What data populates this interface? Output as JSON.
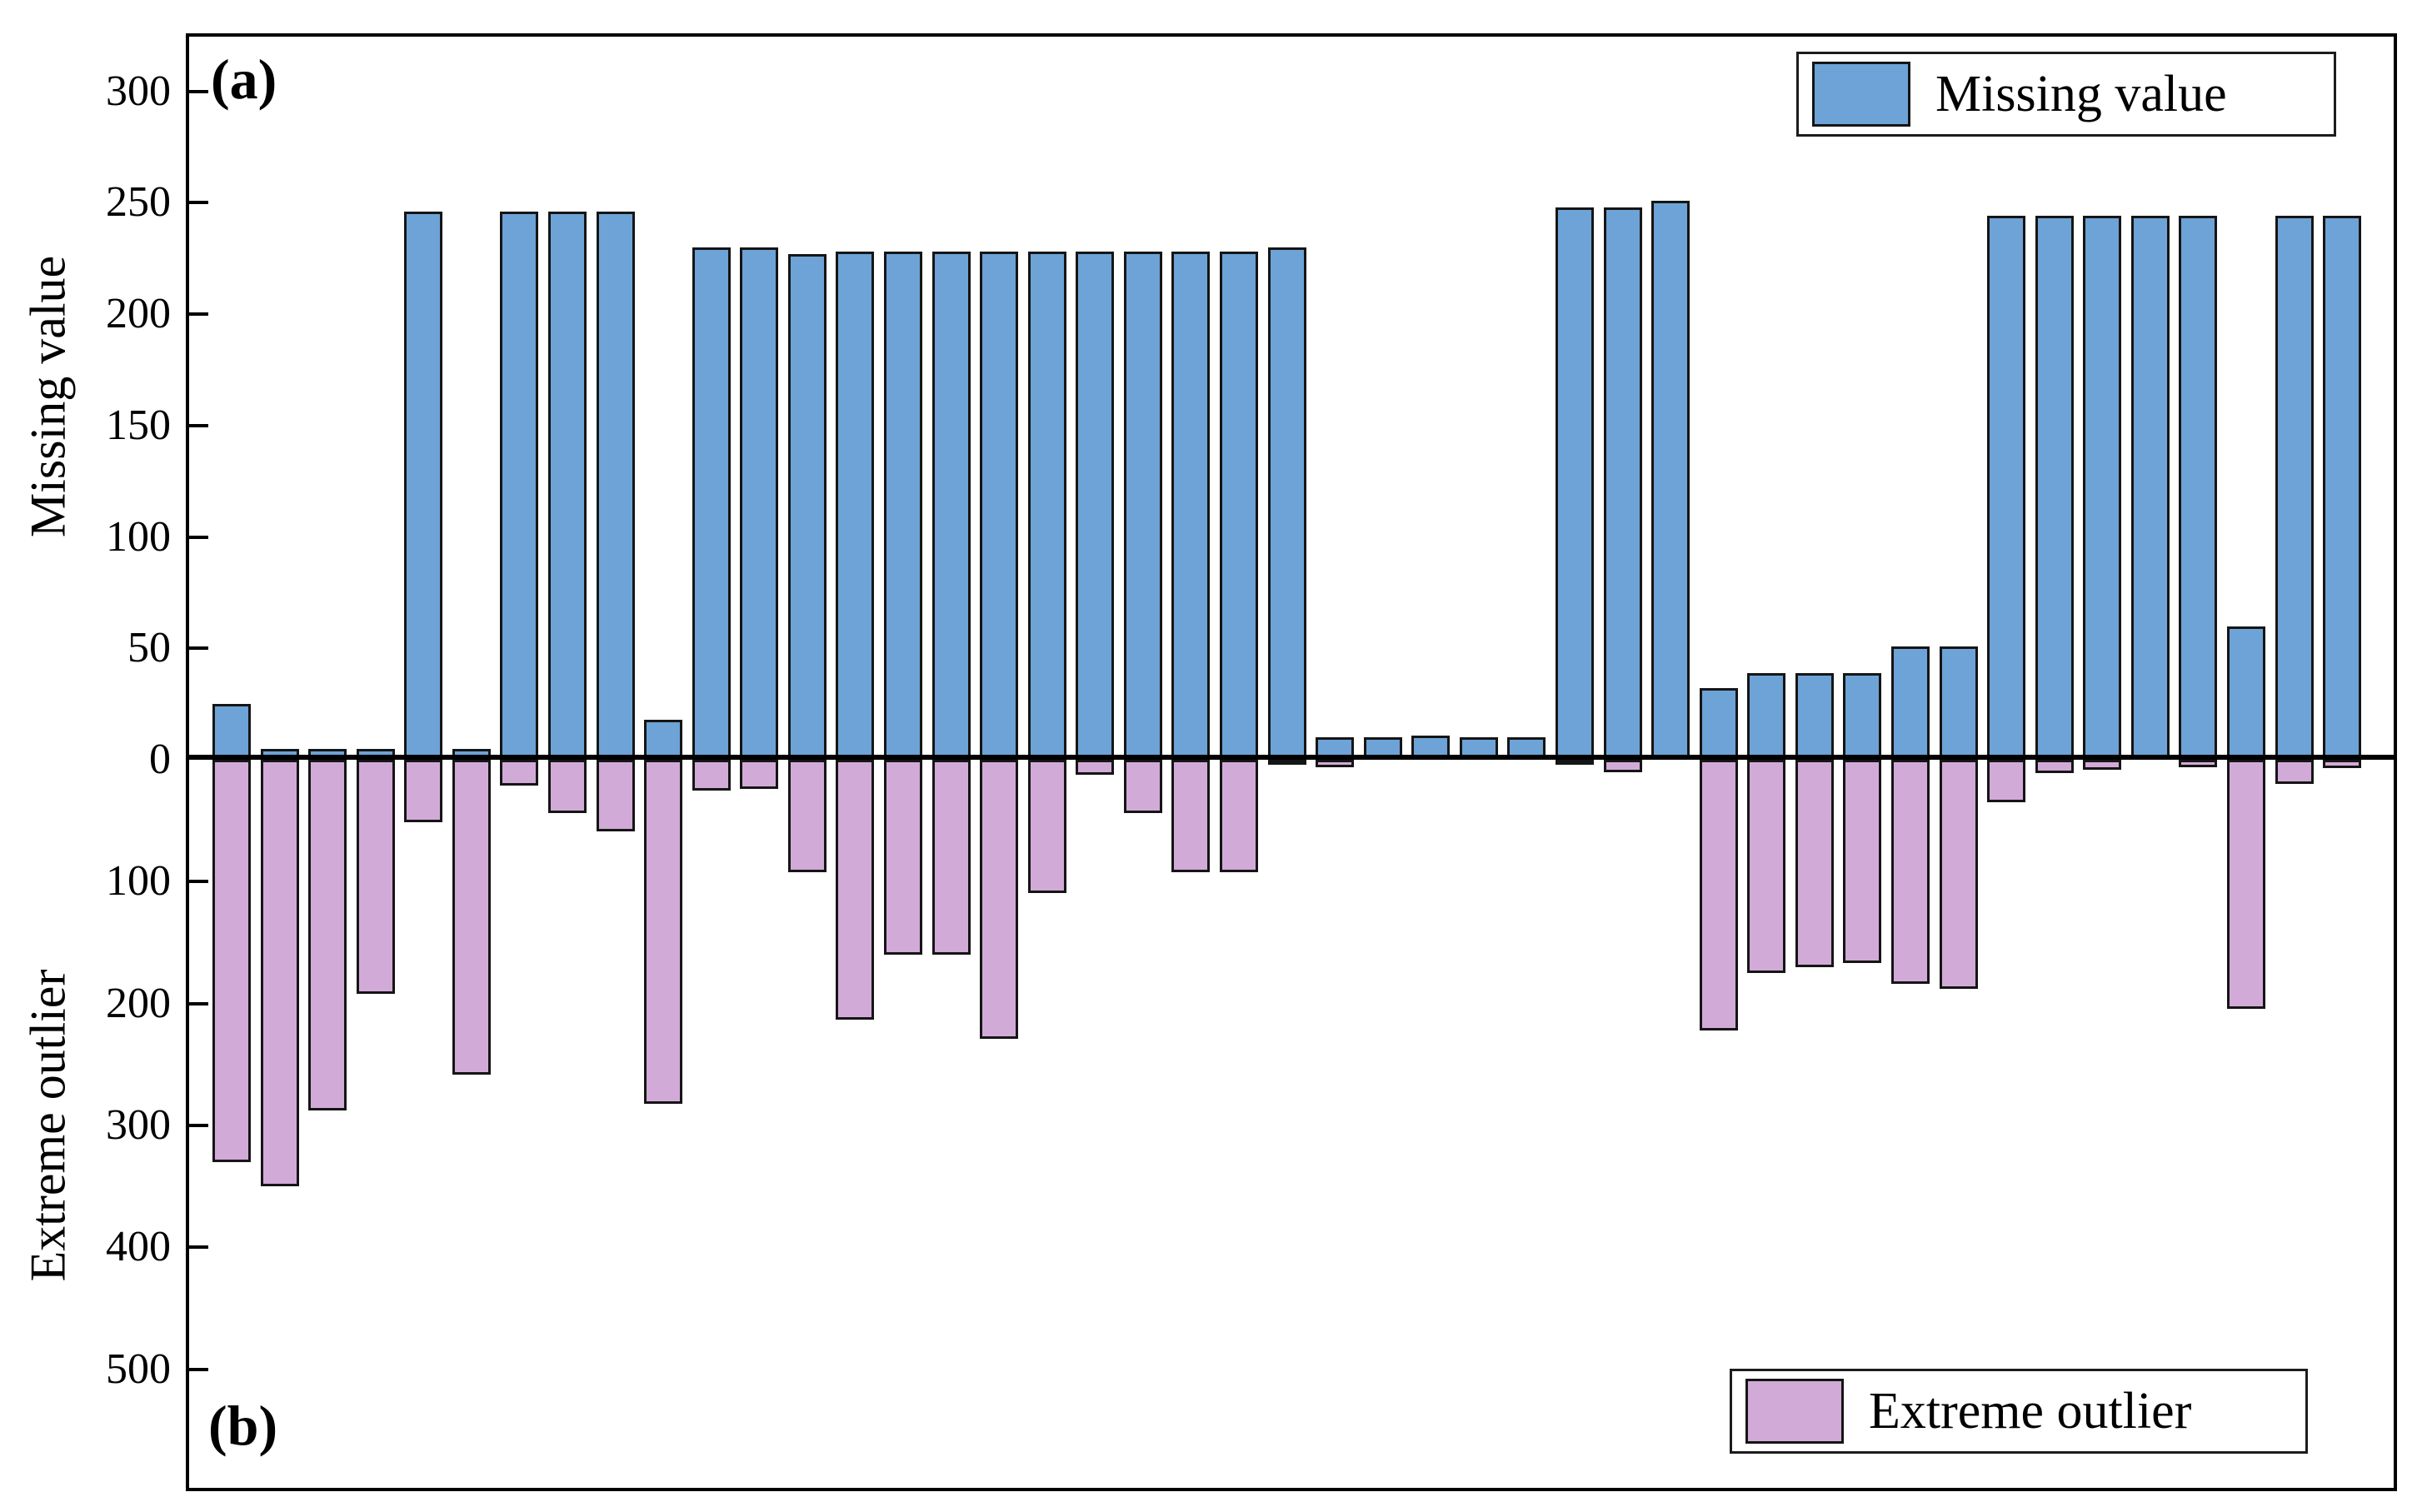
{
  "chart_data": {
    "type": "bar",
    "title": "",
    "n_bars": 45,
    "x_tick_labels": null,
    "grid": false,
    "background_color": "#FFFFFF",
    "axis_color": "#000000",
    "panels": [
      {
        "id": "a",
        "corner_label": "(a)",
        "ylabel": "Missing value",
        "yticks": [
          300,
          250,
          200,
          150,
          100,
          50,
          0
        ],
        "ylim": [
          0,
          326
        ],
        "tick_direction": "in",
        "legend": {
          "label": "Missing value",
          "position": "upper right"
        }
      },
      {
        "id": "b",
        "corner_label": "(b)",
        "ylabel": "Extreme outlier",
        "yticks": [
          100,
          200,
          300,
          400,
          500
        ],
        "ylim": [
          0,
          -600
        ],
        "tick_direction": "in",
        "legend": {
          "label": "Extreme outlier",
          "position": "lower right"
        }
      }
    ],
    "series": [
      {
        "name": "Missing value",
        "panel": "a",
        "color": "#6DA3D6",
        "edge_color": "#151515",
        "values": [
          25,
          5,
          5,
          5,
          246,
          5,
          246,
          246,
          246,
          18,
          230,
          230,
          227,
          228,
          228,
          228,
          228,
          228,
          228,
          228,
          228,
          228,
          230,
          10,
          10,
          11,
          10,
          10,
          248,
          248,
          251,
          32,
          39,
          39,
          39,
          51,
          51,
          244,
          244,
          244,
          244,
          244,
          60,
          244,
          244
        ]
      },
      {
        "name": "Extreme outlier",
        "panel": "b",
        "color": "#D2AAD8",
        "edge_color": "#151515",
        "values": [
          -330,
          -350,
          -288,
          -192,
          -51,
          -258,
          -21,
          -44,
          -59,
          -282,
          -25,
          -24,
          -92,
          -213,
          -160,
          -160,
          -229,
          -109,
          -12,
          -44,
          -92,
          -92,
          -4,
          -6,
          0,
          0,
          0,
          0,
          -3,
          -10,
          0,
          -222,
          -175,
          -170,
          -167,
          -184,
          -188,
          -35,
          -11,
          -8,
          0,
          -6,
          -204,
          -20,
          -7
        ]
      }
    ]
  }
}
